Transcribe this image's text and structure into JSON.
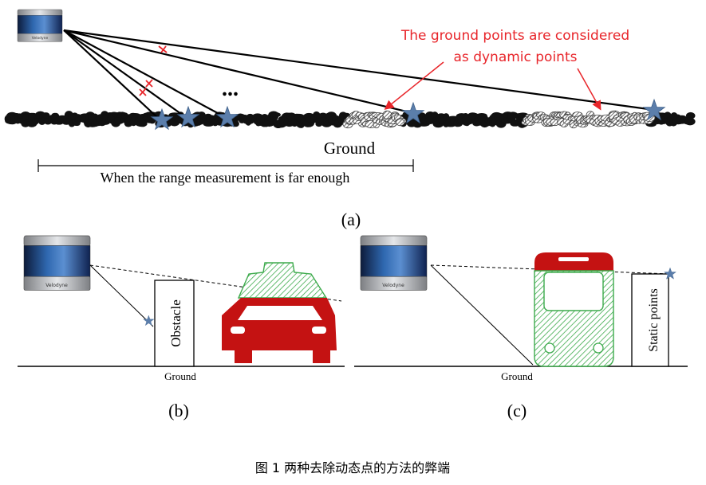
{
  "panel_a": {
    "annotation_line1": "The ground points are considered",
    "annotation_line2": "as dynamic points",
    "ellipsis": "...",
    "ground_label": "Ground",
    "range_label": "When the range measurement is far enough",
    "caption": "(a)",
    "sensor_brand": "Velodyne"
  },
  "panel_b": {
    "obstacle_label": "Obstacle",
    "ground_label": "Ground",
    "caption": "(b)",
    "sensor_brand": "Velodyne"
  },
  "panel_c": {
    "static_label": "Static points",
    "ground_label": "Ground",
    "caption": "(c)",
    "sensor_brand": "Velodyne"
  },
  "figure_caption": "图 1 两种去除动态点的方法的弊端",
  "colors": {
    "annotation": "#e8252a",
    "star": "#5b7eab",
    "car_red": "#c41212",
    "hatch_green": "#3daa4c",
    "ground_black": "#111111",
    "hatch_gray": "#555555"
  }
}
